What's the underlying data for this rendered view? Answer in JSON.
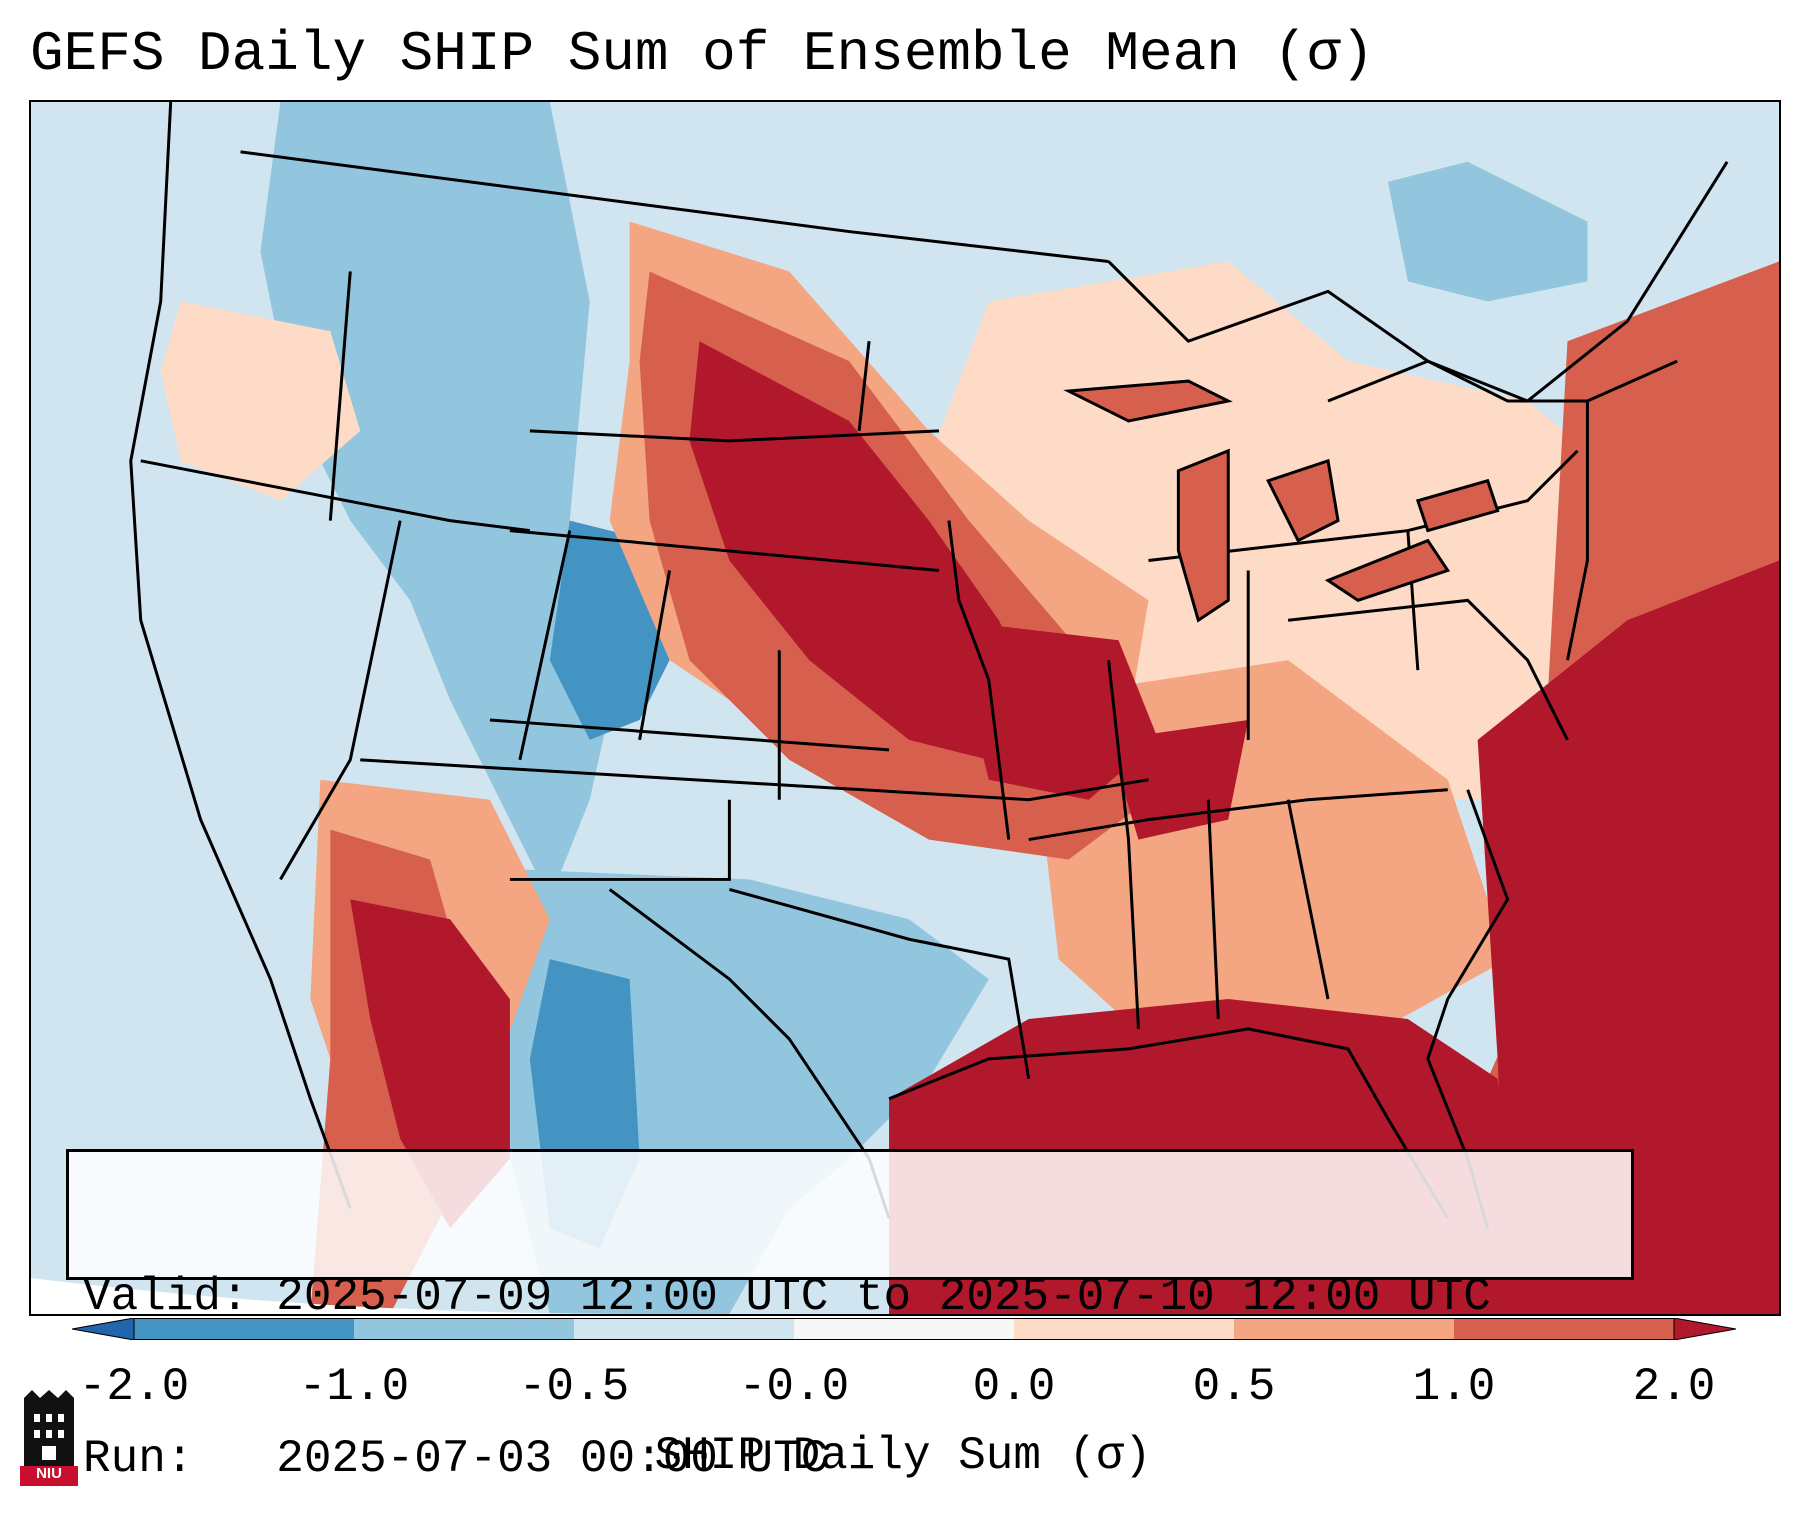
{
  "title": "GEFS Daily SHIP Sum of Ensemble Mean (σ)",
  "info": {
    "valid_line": "Valid: 2025-07-09 12:00 UTC to 2025-07-10 12:00 UTC",
    "run_line": "Run:   2025-07-03 00:00 UTC"
  },
  "colorbar": {
    "label": "SHIP Daily Sum (σ)",
    "ticks": [
      "-2.0",
      "-1.0",
      "-0.5",
      "-0.0",
      "0.0",
      "0.5",
      "1.0",
      "2.0"
    ],
    "bins": [
      {
        "from": "-2.0",
        "to": "-1.0",
        "color": "#4393c3"
      },
      {
        "from": "-1.0",
        "to": "-0.5",
        "color": "#92c5de"
      },
      {
        "from": "-0.5",
        "to": "-0.0",
        "color": "#d1e5f0"
      },
      {
        "from": "-0.0",
        "to": "0.0",
        "color": "#f7f7f7"
      },
      {
        "from": "0.0",
        "to": "0.5",
        "color": "#fddbc7"
      },
      {
        "from": "0.5",
        "to": "1.0",
        "color": "#f4a582"
      },
      {
        "from": "1.0",
        "to": "2.0",
        "color": "#d6604d"
      }
    ],
    "under_color": "#2166ac",
    "over_color": "#b2182b"
  },
  "map": {
    "region": "Contiguous United States",
    "pattern": "Above-normal SHIP over central Plains, Midwest, Southeast and Gulf/Atlantic waters; below-normal over the West, Rockies and Texas"
  },
  "logo": {
    "text": "NIU"
  }
}
